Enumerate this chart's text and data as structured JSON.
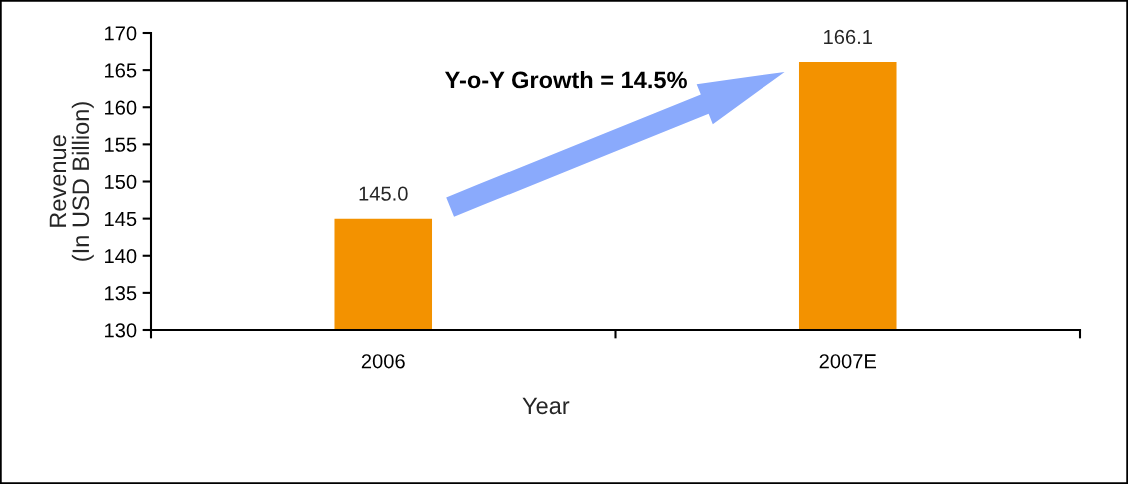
{
  "chart_data": {
    "type": "bar",
    "categories": [
      "2006",
      "2007E"
    ],
    "values": [
      145.0,
      166.1
    ],
    "value_labels": [
      "145.0",
      "166.1"
    ],
    "color": "#f39200",
    "ylim": [
      130,
      170
    ],
    "yticks": [
      130,
      135,
      140,
      145,
      150,
      155,
      160,
      165,
      170
    ],
    "xlabel": "Year",
    "ylabel": "Revenue\n(In USD Billion)",
    "annotations": [
      "Y-o-Y Growth = 14.5%"
    ],
    "grid": false
  }
}
